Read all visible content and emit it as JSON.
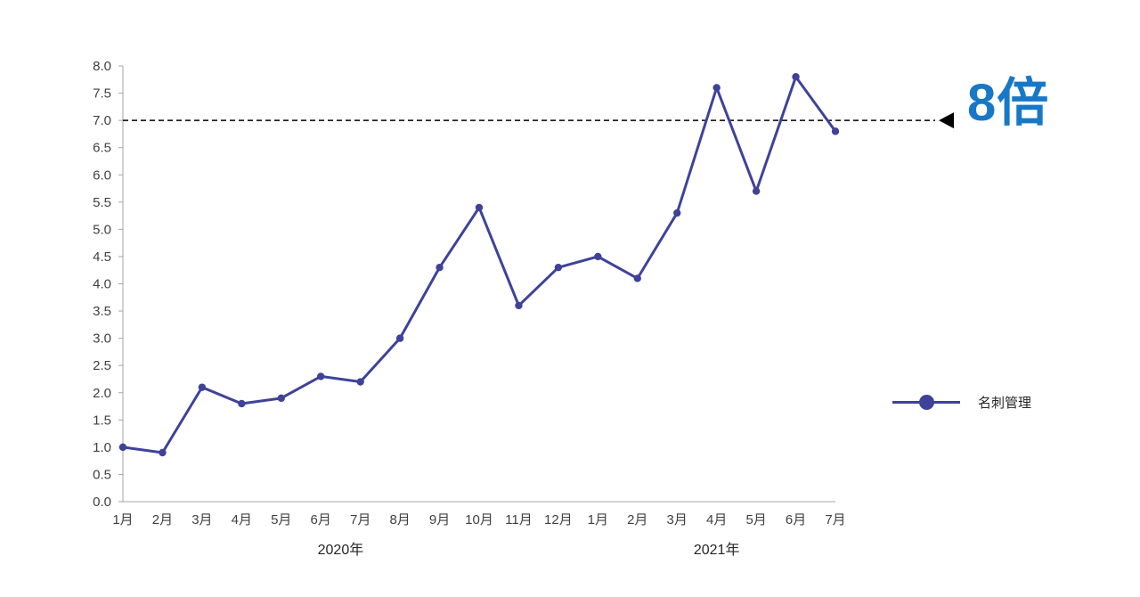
{
  "chart_data": {
    "type": "line",
    "title": "",
    "categories": [
      "1月",
      "2月",
      "3月",
      "4月",
      "5月",
      "6月",
      "7月",
      "8月",
      "9月",
      "10月",
      "11月",
      "12月",
      "1月",
      "2月",
      "3月",
      "4月",
      "5月",
      "6月",
      "7月"
    ],
    "year_groups": [
      {
        "label": "2020年",
        "start_index": 0,
        "end_index": 11
      },
      {
        "label": "2021年",
        "start_index": 12,
        "end_index": 18
      }
    ],
    "series": [
      {
        "name": "名刺管理",
        "color": "#3F4299",
        "values": [
          1.0,
          0.9,
          2.1,
          1.8,
          1.9,
          2.3,
          2.2,
          3.0,
          4.3,
          5.4,
          3.6,
          4.3,
          4.5,
          4.1,
          5.3,
          7.6,
          5.7,
          7.8,
          6.8
        ]
      }
    ],
    "ylim": [
      0,
      8
    ],
    "ytick_step": 0.5,
    "reference_line": {
      "value": 7.0,
      "style": "dashed",
      "color": "#000000",
      "arrow": "left",
      "label": "8倍",
      "label_color": "#1878C8"
    },
    "legend": {
      "position": "right",
      "entries": [
        {
          "label": "名刺管理",
          "color": "#3F4299"
        }
      ]
    },
    "grid": false,
    "axis_color": "#A6A6A6",
    "tick_label_color": "#404040"
  }
}
